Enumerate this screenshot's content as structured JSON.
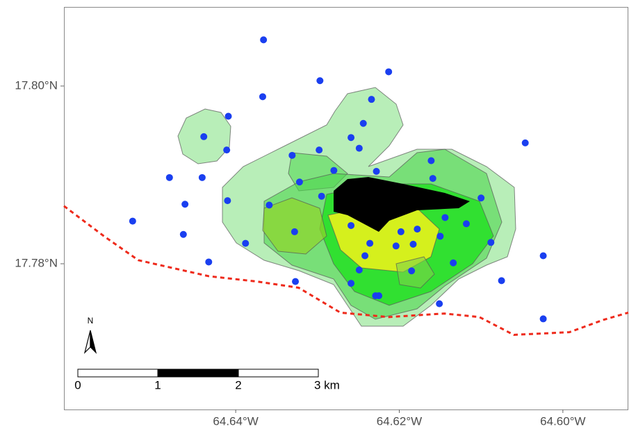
{
  "chart_data": {
    "type": "scatter",
    "xlim": [
      -64.661,
      -64.592
    ],
    "ylim": [
      17.7636,
      17.8089
    ],
    "xticks": [
      {
        "value": -64.64,
        "label": "64.64°W"
      },
      {
        "value": -64.62,
        "label": "64.62°W"
      },
      {
        "value": -64.6,
        "label": "64.60°W"
      }
    ],
    "yticks": [
      {
        "value": 17.78,
        "label": "17.78°N"
      },
      {
        "value": 17.8,
        "label": "17.80°N"
      }
    ],
    "points": {
      "color": "#1a3ff0",
      "x": [
        -64.6366,
        -64.6297,
        -64.6213,
        -64.6367,
        -64.6234,
        -64.6409,
        -64.6244,
        -64.6439,
        -64.6259,
        -64.6411,
        -64.6298,
        -64.6249,
        -64.6331,
        -64.6046,
        -64.6161,
        -64.628,
        -64.6228,
        -64.6481,
        -64.6441,
        -64.6322,
        -64.6159,
        -64.6295,
        -64.641,
        -64.61,
        -64.6462,
        -64.6359,
        -64.6526,
        -64.6144,
        -64.6118,
        -64.6259,
        -64.6178,
        -64.6328,
        -64.6198,
        -64.6464,
        -64.615,
        -64.6388,
        -64.6236,
        -64.6088,
        -64.6204,
        -64.6183,
        -64.6242,
        -64.6024,
        -64.6433,
        -64.6134,
        -64.6249,
        -64.6185,
        -64.6075,
        -64.6327,
        -64.6259,
        -64.6229,
        -64.6225,
        -64.6151,
        -64.6024
      ],
      "y": [
        17.8052,
        17.8006,
        17.8016,
        17.7988,
        17.7985,
        17.7966,
        17.7958,
        17.7943,
        17.7942,
        17.7928,
        17.7928,
        17.793,
        17.7922,
        17.7936,
        17.7916,
        17.7905,
        17.7904,
        17.7897,
        17.7897,
        17.7892,
        17.7896,
        17.7876,
        17.7871,
        17.7874,
        17.7867,
        17.7866,
        17.7848,
        17.7852,
        17.7845,
        17.7843,
        17.7839,
        17.7836,
        17.7836,
        17.7833,
        17.7831,
        17.7823,
        17.7823,
        17.7824,
        17.782,
        17.7822,
        17.7809,
        17.7809,
        17.7802,
        17.7801,
        17.7793,
        17.7792,
        17.7781,
        17.778,
        17.7778,
        17.7764,
        17.7764,
        17.7755,
        17.7738
      ]
    },
    "line": {
      "color": "#ee2a1b",
      "dashed": true,
      "x": [
        -64.661,
        -64.6561,
        -64.6519,
        -64.6433,
        -64.6374,
        -64.6323,
        -64.6272,
        -64.6213,
        -64.6145,
        -64.6102,
        -64.606,
        -64.5992,
        -64.595,
        -64.592
      ],
      "y": [
        17.7865,
        17.7831,
        17.7804,
        17.7786,
        17.778,
        17.7773,
        17.7745,
        17.774,
        17.7744,
        17.774,
        17.772,
        17.7723,
        17.7737,
        17.7745
      ]
    },
    "north_arrow": "N",
    "scale_bar": {
      "labels": [
        "0",
        "1",
        "2",
        "3 km"
      ]
    }
  }
}
